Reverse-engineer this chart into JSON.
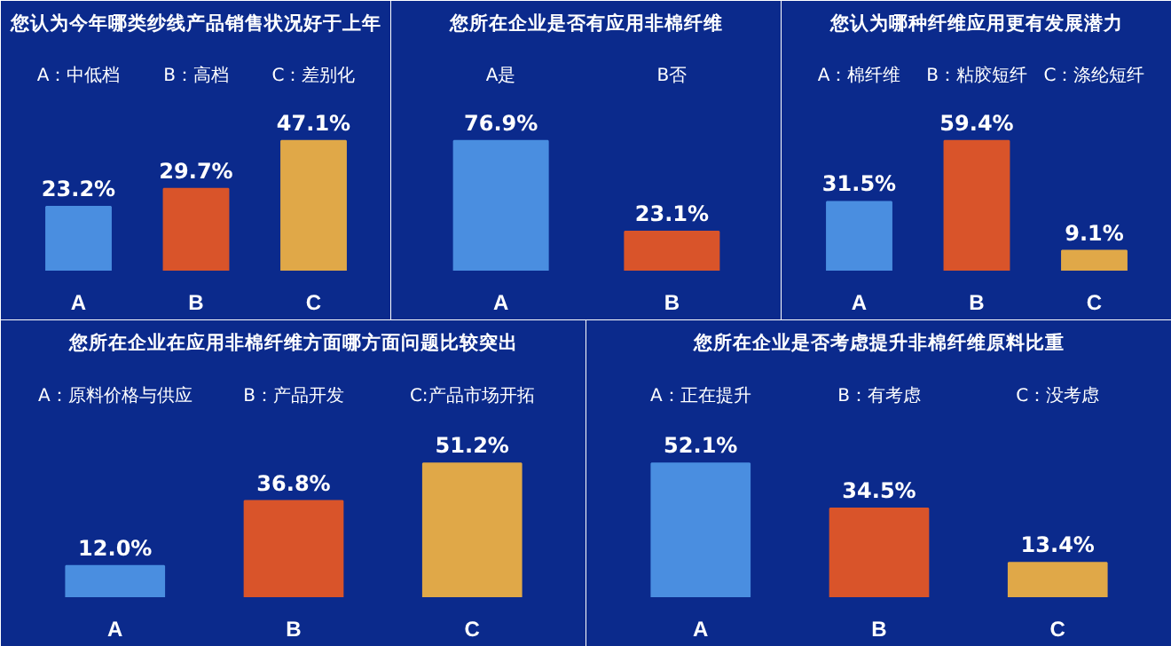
{
  "chart_data": [
    {
      "type": "bar",
      "title": "您认为今年哪类纱线产品销售状况好于上年",
      "categories": [
        "A",
        "B",
        "C"
      ],
      "values": [
        23.2,
        29.7,
        47.1
      ],
      "colors": [
        "#4a8ee0",
        "#d9542a",
        "#e0a848"
      ],
      "value_labels": [
        "23.2%",
        "29.7%",
        "47.1%"
      ],
      "annotations": [
        "A：中低档",
        "B：高档",
        "C：差别化"
      ]
    },
    {
      "type": "bar",
      "title": "您所在企业是否有应用非棉纤维",
      "categories": [
        "A",
        "B"
      ],
      "values": [
        76.9,
        23.1
      ],
      "colors": [
        "#4a8ee0",
        "#d9542a"
      ],
      "value_labels": [
        "76.9%",
        "23.1%"
      ],
      "annotations": [
        "A是",
        "B否"
      ]
    },
    {
      "type": "bar",
      "title": "您认为哪种纤维应用更有发展潜力",
      "categories": [
        "A",
        "B",
        "C"
      ],
      "values": [
        31.5,
        59.4,
        9.1
      ],
      "colors": [
        "#4a8ee0",
        "#d9542a",
        "#e0a848"
      ],
      "value_labels": [
        "31.5%",
        "59.4%",
        "9.1%"
      ],
      "annotations": [
        "A：棉纤维",
        "B：粘胶短纤",
        "C：涤纶短纤"
      ]
    },
    {
      "type": "bar",
      "title": "您所在企业在应用非棉纤维方面哪方面问题比较突出",
      "categories": [
        "A",
        "B",
        "C"
      ],
      "values": [
        12.0,
        36.8,
        51.2
      ],
      "colors": [
        "#4a8ee0",
        "#d9542a",
        "#e0a848"
      ],
      "value_labels": [
        "12.0%",
        "36.8%",
        "51.2%"
      ],
      "annotations": [
        "A：原料价格与供应",
        "B：产品开发",
        "C:产品市场开拓"
      ]
    },
    {
      "type": "bar",
      "title": "您所在企业是否考虑提升非棉纤维原料比重",
      "categories": [
        "A",
        "B",
        "C"
      ],
      "values": [
        52.1,
        34.5,
        13.4
      ],
      "colors": [
        "#4a8ee0",
        "#d9542a",
        "#e0a848"
      ],
      "value_labels": [
        "52.1%",
        "34.5%",
        "13.4%"
      ],
      "annotations": [
        "A：正在提升",
        "B：有考虑",
        "C：没考虑"
      ]
    }
  ]
}
